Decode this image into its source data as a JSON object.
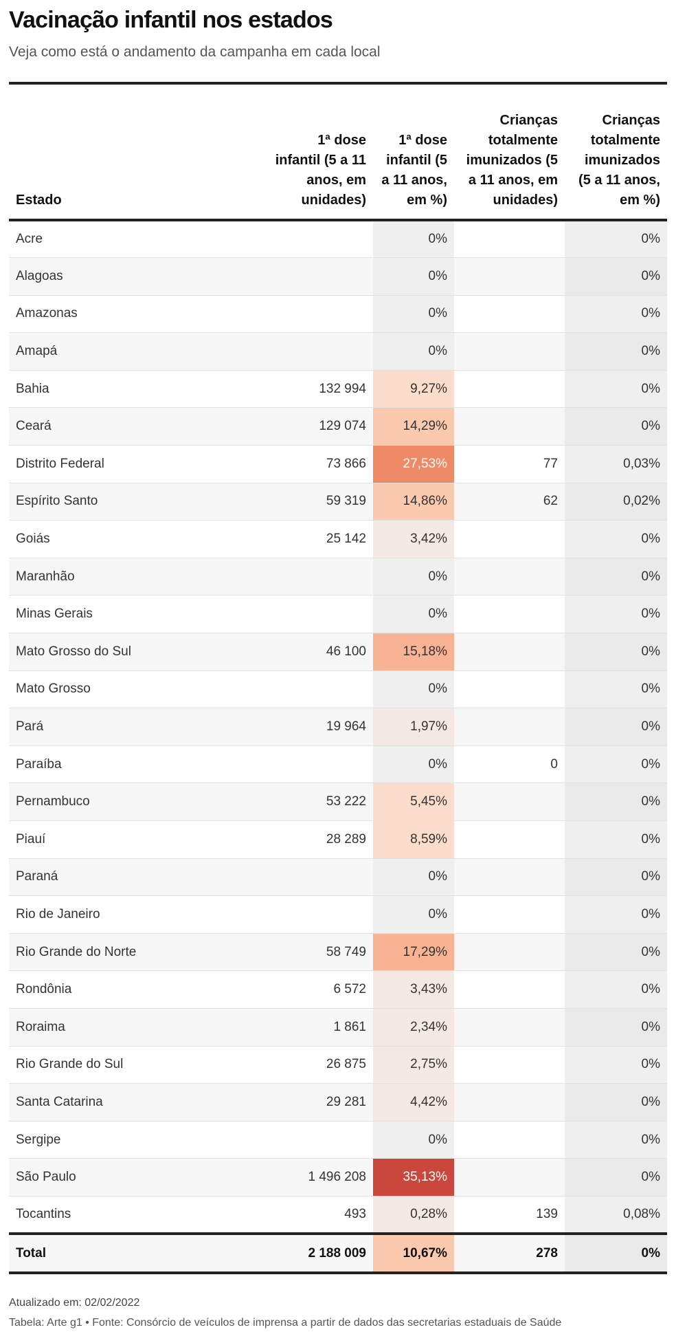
{
  "title": "Vacinação infantil nos estados",
  "subtitle": "Veja como está o andamento da campanha em cada local",
  "columns": [
    "Estado",
    "1ª dose infantil (5 a 11 anos, em unidades)",
    "1ª dose infantil (5 a 11 anos, em %)",
    "Crianças totalmente imunizados (5 a 11 anos, em unidades)",
    "Crianças totalmente imunizados (5 a 11 anos, em %)"
  ],
  "rows": [
    {
      "estado": "Acre",
      "dose1_un": "",
      "dose1_pct": "0%",
      "dose1_pct_value": 0,
      "imun_un": "",
      "imun_pct": "0%"
    },
    {
      "estado": "Alagoas",
      "dose1_un": "",
      "dose1_pct": "0%",
      "dose1_pct_value": 0,
      "imun_un": "",
      "imun_pct": "0%"
    },
    {
      "estado": "Amazonas",
      "dose1_un": "",
      "dose1_pct": "0%",
      "dose1_pct_value": 0,
      "imun_un": "",
      "imun_pct": "0%"
    },
    {
      "estado": "Amapá",
      "dose1_un": "",
      "dose1_pct": "0%",
      "dose1_pct_value": 0,
      "imun_un": "",
      "imun_pct": "0%"
    },
    {
      "estado": "Bahia",
      "dose1_un": "132 994",
      "dose1_pct": "9,27%",
      "dose1_pct_value": 9.27,
      "imun_un": "",
      "imun_pct": "0%"
    },
    {
      "estado": "Ceará",
      "dose1_un": "129 074",
      "dose1_pct": "14,29%",
      "dose1_pct_value": 14.29,
      "imun_un": "",
      "imun_pct": "0%"
    },
    {
      "estado": "Distrito Federal",
      "dose1_un": "73 866",
      "dose1_pct": "27,53%",
      "dose1_pct_value": 27.53,
      "imun_un": "77",
      "imun_pct": "0,03%"
    },
    {
      "estado": "Espírito Santo",
      "dose1_un": "59 319",
      "dose1_pct": "14,86%",
      "dose1_pct_value": 14.86,
      "imun_un": "62",
      "imun_pct": "0,02%"
    },
    {
      "estado": "Goiás",
      "dose1_un": "25 142",
      "dose1_pct": "3,42%",
      "dose1_pct_value": 3.42,
      "imun_un": "",
      "imun_pct": "0%"
    },
    {
      "estado": "Maranhão",
      "dose1_un": "",
      "dose1_pct": "0%",
      "dose1_pct_value": 0,
      "imun_un": "",
      "imun_pct": "0%"
    },
    {
      "estado": "Minas Gerais",
      "dose1_un": "",
      "dose1_pct": "0%",
      "dose1_pct_value": 0,
      "imun_un": "",
      "imun_pct": "0%"
    },
    {
      "estado": "Mato Grosso do Sul",
      "dose1_un": "46 100",
      "dose1_pct": "15,18%",
      "dose1_pct_value": 15.18,
      "imun_un": "",
      "imun_pct": "0%"
    },
    {
      "estado": "Mato Grosso",
      "dose1_un": "",
      "dose1_pct": "0%",
      "dose1_pct_value": 0,
      "imun_un": "",
      "imun_pct": "0%"
    },
    {
      "estado": "Pará",
      "dose1_un": "19 964",
      "dose1_pct": "1,97%",
      "dose1_pct_value": 1.97,
      "imun_un": "",
      "imun_pct": "0%"
    },
    {
      "estado": "Paraíba",
      "dose1_un": "",
      "dose1_pct": "0%",
      "dose1_pct_value": 0,
      "imun_un": "0",
      "imun_pct": "0%"
    },
    {
      "estado": "Pernambuco",
      "dose1_un": "53 222",
      "dose1_pct": "5,45%",
      "dose1_pct_value": 5.45,
      "imun_un": "",
      "imun_pct": "0%"
    },
    {
      "estado": "Piauí",
      "dose1_un": "28 289",
      "dose1_pct": "8,59%",
      "dose1_pct_value": 8.59,
      "imun_un": "",
      "imun_pct": "0%"
    },
    {
      "estado": "Paraná",
      "dose1_un": "",
      "dose1_pct": "0%",
      "dose1_pct_value": 0,
      "imun_un": "",
      "imun_pct": "0%"
    },
    {
      "estado": "Rio de Janeiro",
      "dose1_un": "",
      "dose1_pct": "0%",
      "dose1_pct_value": 0,
      "imun_un": "",
      "imun_pct": "0%"
    },
    {
      "estado": "Rio Grande do Norte",
      "dose1_un": "58 749",
      "dose1_pct": "17,29%",
      "dose1_pct_value": 17.29,
      "imun_un": "",
      "imun_pct": "0%"
    },
    {
      "estado": "Rondônia",
      "dose1_un": "6 572",
      "dose1_pct": "3,43%",
      "dose1_pct_value": 3.43,
      "imun_un": "",
      "imun_pct": "0%"
    },
    {
      "estado": "Roraima",
      "dose1_un": "1 861",
      "dose1_pct": "2,34%",
      "dose1_pct_value": 2.34,
      "imun_un": "",
      "imun_pct": "0%"
    },
    {
      "estado": "Rio Grande do Sul",
      "dose1_un": "26 875",
      "dose1_pct": "2,75%",
      "dose1_pct_value": 2.75,
      "imun_un": "",
      "imun_pct": "0%"
    },
    {
      "estado": "Santa Catarina",
      "dose1_un": "29 281",
      "dose1_pct": "4,42%",
      "dose1_pct_value": 4.42,
      "imun_un": "",
      "imun_pct": "0%"
    },
    {
      "estado": "Sergipe",
      "dose1_un": "",
      "dose1_pct": "0%",
      "dose1_pct_value": 0,
      "imun_un": "",
      "imun_pct": "0%"
    },
    {
      "estado": "São Paulo",
      "dose1_un": "1 496 208",
      "dose1_pct": "35,13%",
      "dose1_pct_value": 35.13,
      "imun_un": "",
      "imun_pct": "0%"
    },
    {
      "estado": "Tocantins",
      "dose1_un": "493",
      "dose1_pct": "0,28%",
      "dose1_pct_value": 0.28,
      "imun_un": "139",
      "imun_pct": "0,08%"
    }
  ],
  "total": {
    "label": "Total",
    "dose1_un": "2 188 009",
    "dose1_pct": "10,67%",
    "dose1_pct_value": 10.67,
    "imun_un": "278",
    "imun_pct": "0%"
  },
  "heat_colors": {
    "empty": "#efefef",
    "stops": [
      "#f5e9e4",
      "#fcdccb",
      "#fbc9ae",
      "#f7b394",
      "#ee8a66",
      "#c9473c"
    ]
  },
  "updated": "Atualizado em: 02/02/2022",
  "source": "Tabela: Arte g1 • Fonte: Consórcio de veículos de imprensa a partir de dados das secretarias estaduais de Saúde"
}
